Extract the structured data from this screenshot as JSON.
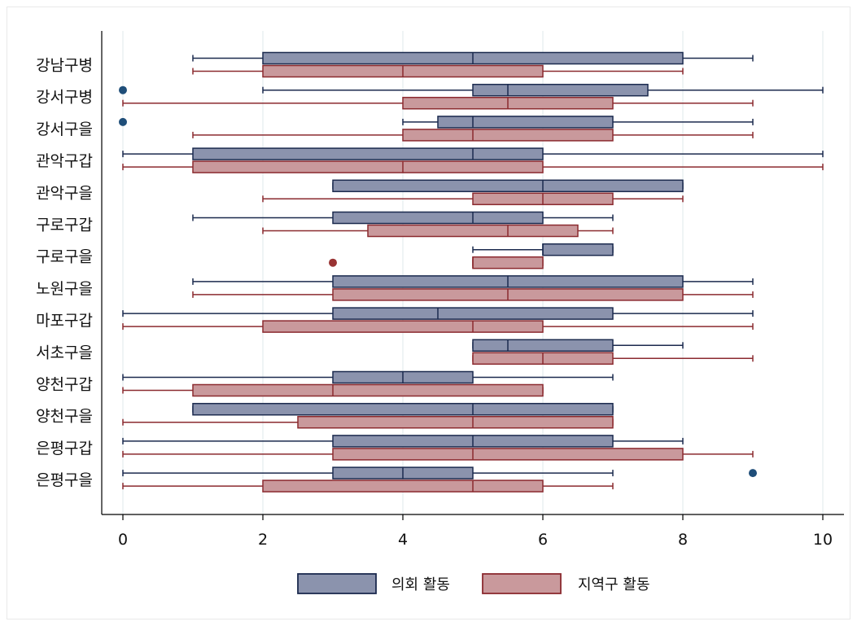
{
  "chart_data": {
    "type": "boxplot",
    "orientation": "horizontal",
    "title": "",
    "xlabel": "",
    "ylabel": "",
    "xlim": [
      0,
      10
    ],
    "xticks": [
      "0",
      "2",
      "4",
      "6",
      "8",
      "10"
    ],
    "grid": true,
    "legend_position": "bottom",
    "categories": [
      "강남구병",
      "강서구병",
      "강서구을",
      "관악구갑",
      "관악구을",
      "구로구갑",
      "구로구을",
      "노원구을",
      "마포구갑",
      "서초구을",
      "양천구갑",
      "양천구을",
      "은평구갑",
      "은평구을"
    ],
    "series": [
      {
        "name": "의회 활동",
        "fill": "#8b93ad",
        "stroke": "#1b2a4e",
        "boxes": [
          {
            "min": 1,
            "q1": 2,
            "median": 5,
            "q3": 8,
            "max": 9,
            "outliers": []
          },
          {
            "min": 2,
            "q1": 5,
            "median": 5.5,
            "q3": 7.5,
            "max": 10,
            "outliers": [
              0
            ]
          },
          {
            "min": 4,
            "q1": 4.5,
            "median": 5,
            "q3": 7,
            "max": 9,
            "outliers": [
              0
            ]
          },
          {
            "min": 0,
            "q1": 1,
            "median": 5,
            "q3": 6,
            "max": 10,
            "outliers": []
          },
          {
            "min": 3,
            "q1": 3,
            "median": 6,
            "q3": 8,
            "max": 8,
            "outliers": []
          },
          {
            "min": 1,
            "q1": 3,
            "median": 5,
            "q3": 6,
            "max": 7,
            "outliers": []
          },
          {
            "min": 5,
            "q1": 6,
            "median": 6,
            "q3": 7,
            "max": 7,
            "outliers": []
          },
          {
            "min": 1,
            "q1": 3,
            "median": 5.5,
            "q3": 8,
            "max": 9,
            "outliers": []
          },
          {
            "min": 0,
            "q1": 3,
            "median": 4.5,
            "q3": 7,
            "max": 9,
            "outliers": []
          },
          {
            "min": 5,
            "q1": 5,
            "median": 5.5,
            "q3": 7,
            "max": 8,
            "outliers": []
          },
          {
            "min": 0,
            "q1": 3,
            "median": 4,
            "q3": 5,
            "max": 7,
            "outliers": []
          },
          {
            "min": 1,
            "q1": 1,
            "median": 5,
            "q3": 7,
            "max": 7,
            "outliers": []
          },
          {
            "min": 0,
            "q1": 3,
            "median": 5,
            "q3": 7,
            "max": 8,
            "outliers": []
          },
          {
            "min": 0,
            "q1": 3,
            "median": 4,
            "q3": 5,
            "max": 7,
            "outliers": [
              9
            ]
          }
        ]
      },
      {
        "name": "지역구 활동",
        "fill": "#c9999c",
        "stroke": "#8b2a2f",
        "boxes": [
          {
            "min": 1,
            "q1": 2,
            "median": 4,
            "q3": 6,
            "max": 8,
            "outliers": []
          },
          {
            "min": 0,
            "q1": 4,
            "median": 5.5,
            "q3": 7,
            "max": 9,
            "outliers": []
          },
          {
            "min": 1,
            "q1": 4,
            "median": 5,
            "q3": 7,
            "max": 9,
            "outliers": []
          },
          {
            "min": 0,
            "q1": 1,
            "median": 4,
            "q3": 6,
            "max": 10,
            "outliers": []
          },
          {
            "min": 2,
            "q1": 5,
            "median": 6,
            "q3": 7,
            "max": 8,
            "outliers": []
          },
          {
            "min": 2,
            "q1": 3.5,
            "median": 5.5,
            "q3": 6.5,
            "max": 7,
            "outliers": []
          },
          {
            "min": 5,
            "q1": 5,
            "median": 5,
            "q3": 6,
            "max": 6,
            "outliers": [
              3
            ]
          },
          {
            "min": 1,
            "q1": 3,
            "median": 5.5,
            "q3": 8,
            "max": 9,
            "outliers": []
          },
          {
            "min": 0,
            "q1": 2,
            "median": 5,
            "q3": 6,
            "max": 9,
            "outliers": []
          },
          {
            "min": 5,
            "q1": 5,
            "median": 6,
            "q3": 7,
            "max": 9,
            "outliers": []
          },
          {
            "min": 0,
            "q1": 1,
            "median": 3,
            "q3": 6,
            "max": 6,
            "outliers": []
          },
          {
            "min": 0,
            "q1": 2.5,
            "median": 5,
            "q3": 7,
            "max": 7,
            "outliers": []
          },
          {
            "min": 0,
            "q1": 3,
            "median": 5,
            "q3": 8,
            "max": 9,
            "outliers": []
          },
          {
            "min": 0,
            "q1": 2,
            "median": 5,
            "q3": 6,
            "max": 7,
            "outliers": []
          }
        ]
      }
    ]
  }
}
